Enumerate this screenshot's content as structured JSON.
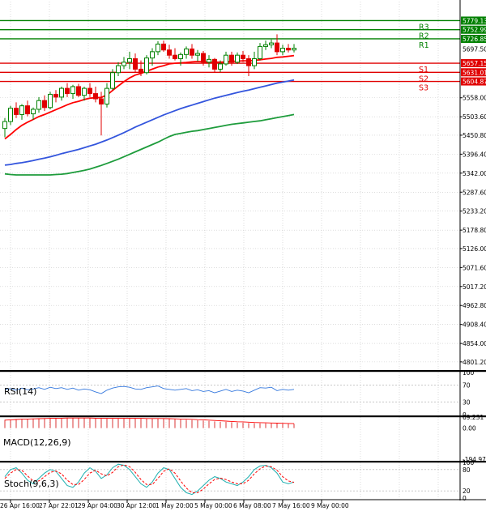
{
  "chart_data": {
    "type": "candlestick",
    "instrument_note": "",
    "price_axis": {
      "labels": [
        "5558.00",
        "5503.60",
        "5450.80",
        "5396.40",
        "5342.00",
        "5287.60",
        "5233.20",
        "5178.80",
        "5126.00",
        "5071.60",
        "5017.20",
        "4962.80",
        "4908.40",
        "4854.00",
        "4801.20"
      ],
      "ylim": [
        4780,
        5815
      ]
    },
    "time_axis": {
      "labels": [
        "26 Apr 16:00",
        "27 Apr 22:01",
        "29 Apr 04:00",
        "30 Apr 12:00",
        "1 May 20:00",
        "5 May 00:00",
        "6 May 08:00",
        "7 May 16:00",
        "9 May 00:00"
      ]
    },
    "levels": [
      {
        "name": "R3",
        "value": 5779.13,
        "label": "5779.13",
        "color": "#008000"
      },
      {
        "name": "R2",
        "value": 5752.99,
        "label": "5752.99",
        "color": "#008000"
      },
      {
        "name": "R1",
        "value": 5726.85,
        "label": "5726.85",
        "color": "#008000"
      },
      {
        "name": "S1",
        "value": 5657.15,
        "label": "5657.15",
        "color": "#e00000"
      },
      {
        "name": "S2",
        "value": 5631.01,
        "label": "5631.01",
        "color": "#e00000"
      },
      {
        "name": "S3",
        "value": 5604.87,
        "label": "5604.87",
        "color": "#e00000"
      }
    ],
    "last_price": {
      "value": 5697.5,
      "label": "5697.50"
    },
    "candles": [
      [
        5470,
        5500,
        5445,
        5490
      ],
      [
        5490,
        5535,
        5480,
        5528
      ],
      [
        5528,
        5545,
        5500,
        5510
      ],
      [
        5510,
        5540,
        5495,
        5535
      ],
      [
        5535,
        5550,
        5505,
        5512
      ],
      [
        5512,
        5530,
        5495,
        5525
      ],
      [
        5525,
        5560,
        5515,
        5550
      ],
      [
        5550,
        5565,
        5520,
        5530
      ],
      [
        5530,
        5575,
        5525,
        5568
      ],
      [
        5568,
        5580,
        5545,
        5560
      ],
      [
        5560,
        5590,
        5550,
        5585
      ],
      [
        5585,
        5600,
        5560,
        5570
      ],
      [
        5570,
        5595,
        5555,
        5590
      ],
      [
        5590,
        5598,
        5560,
        5565
      ],
      [
        5565,
        5590,
        5550,
        5585
      ],
      [
        5585,
        5600,
        5560,
        5570
      ],
      [
        5570,
        5590,
        5545,
        5555
      ],
      [
        5555,
        5575,
        5450,
        5540
      ],
      [
        5540,
        5600,
        5530,
        5585
      ],
      [
        5585,
        5640,
        5580,
        5630
      ],
      [
        5630,
        5660,
        5620,
        5650
      ],
      [
        5650,
        5675,
        5640,
        5660
      ],
      [
        5660,
        5690,
        5640,
        5670
      ],
      [
        5670,
        5685,
        5630,
        5640
      ],
      [
        5640,
        5665,
        5620,
        5630
      ],
      [
        5630,
        5680,
        5625,
        5672
      ],
      [
        5672,
        5700,
        5650,
        5690
      ],
      [
        5690,
        5720,
        5680,
        5712
      ],
      [
        5712,
        5722,
        5690,
        5695
      ],
      [
        5695,
        5710,
        5670,
        5680
      ],
      [
        5680,
        5700,
        5665,
        5670
      ],
      [
        5670,
        5688,
        5650,
        5682
      ],
      [
        5682,
        5705,
        5670,
        5698
      ],
      [
        5698,
        5712,
        5670,
        5680
      ],
      [
        5680,
        5695,
        5662,
        5685
      ],
      [
        5685,
        5692,
        5650,
        5660
      ],
      [
        5660,
        5680,
        5645,
        5668
      ],
      [
        5668,
        5672,
        5630,
        5640
      ],
      [
        5640,
        5665,
        5632,
        5655
      ],
      [
        5655,
        5690,
        5650,
        5680
      ],
      [
        5680,
        5690,
        5650,
        5660
      ],
      [
        5660,
        5688,
        5655,
        5680
      ],
      [
        5680,
        5692,
        5660,
        5670
      ],
      [
        5670,
        5680,
        5620,
        5650
      ],
      [
        5650,
        5690,
        5640,
        5670
      ],
      [
        5670,
        5715,
        5665,
        5705
      ],
      [
        5705,
        5722,
        5695,
        5710
      ],
      [
        5710,
        5725,
        5700,
        5715
      ],
      [
        5715,
        5740,
        5680,
        5690
      ],
      [
        5690,
        5710,
        5680,
        5700
      ],
      [
        5700,
        5712,
        5688,
        5695
      ],
      [
        5695,
        5712,
        5688,
        5700
      ]
    ],
    "ma_fast": [
      5440,
      5453,
      5467,
      5479,
      5488,
      5496,
      5504,
      5510,
      5517,
      5524,
      5531,
      5538,
      5544,
      5548,
      5553,
      5557,
      5558,
      5559,
      5566,
      5579,
      5592,
      5604,
      5615,
      5623,
      5628,
      5634,
      5640,
      5646,
      5650,
      5655,
      5657,
      5658,
      5659,
      5661,
      5662,
      5661,
      5660,
      5660,
      5660,
      5661,
      5662,
      5663,
      5664,
      5664,
      5665,
      5667,
      5669,
      5671,
      5674,
      5675,
      5677,
      5679
    ],
    "ma_mid": [
      5365,
      5367,
      5370,
      5372,
      5375,
      5378,
      5382,
      5385,
      5389,
      5393,
      5398,
      5402,
      5406,
      5410,
      5415,
      5420,
      5425,
      5431,
      5437,
      5444,
      5451,
      5458,
      5466,
      5474,
      5481,
      5488,
      5495,
      5502,
      5509,
      5515,
      5521,
      5527,
      5532,
      5537,
      5542,
      5547,
      5552,
      5557,
      5561,
      5565,
      5569,
      5573,
      5577,
      5580,
      5584,
      5588,
      5592,
      5596,
      5600,
      5603,
      5606,
      5609
    ],
    "ma_slow": [
      5340,
      5338,
      5337,
      5337,
      5337,
      5337,
      5337,
      5337,
      5337,
      5338,
      5339,
      5341,
      5344,
      5347,
      5350,
      5354,
      5359,
      5364,
      5370,
      5376,
      5382,
      5389,
      5396,
      5403,
      5410,
      5417,
      5424,
      5431,
      5439,
      5447,
      5453,
      5456,
      5459,
      5462,
      5464,
      5467,
      5470,
      5473,
      5476,
      5479,
      5482,
      5484,
      5486,
      5488,
      5490,
      5492,
      5495,
      5498,
      5501,
      5504,
      5507,
      5510
    ],
    "rsi": {
      "name": "RSI(14)",
      "levels": [
        "100",
        "70",
        "30",
        "0"
      ],
      "values": [
        60,
        62,
        58,
        63,
        59,
        61,
        64,
        60,
        65,
        62,
        64,
        60,
        63,
        58,
        61,
        59,
        54,
        50,
        58,
        63,
        66,
        67,
        65,
        61,
        60,
        64,
        66,
        68,
        62,
        60,
        58,
        60,
        62,
        57,
        59,
        55,
        57,
        52,
        56,
        60,
        55,
        58,
        56,
        52,
        58,
        64,
        63,
        65,
        57,
        60,
        58,
        60
      ]
    },
    "macd": {
      "name": "MACD(12,26,9)",
      "levels": [
        "69.231",
        "0.00",
        "-194.977"
      ],
      "hist": [
        52,
        54,
        56,
        58,
        59,
        60,
        61,
        62,
        63,
        63,
        64,
        64,
        64,
        64,
        64,
        63,
        62,
        61,
        60,
        60,
        61,
        62,
        63,
        62,
        61,
        60,
        60,
        61,
        60,
        58,
        56,
        54,
        52,
        51,
        49,
        47,
        45,
        42,
        40,
        39,
        37,
        35,
        34,
        32,
        31,
        30,
        30,
        30,
        29,
        28,
        27,
        27
      ],
      "signal": [
        50,
        52,
        54,
        56,
        57,
        58,
        59,
        60,
        61,
        62,
        62,
        63,
        63,
        63,
        63,
        63,
        62,
        62,
        61,
        61,
        61,
        61,
        61,
        61,
        61,
        60,
        60,
        60,
        60,
        59,
        58,
        57,
        56,
        55,
        53,
        52,
        50,
        48,
        46,
        44,
        42,
        40,
        39,
        37,
        35,
        34,
        33,
        32,
        31,
        30,
        29,
        28
      ]
    },
    "stoch": {
      "name": "Stoch(9,6,3)",
      "levels": [
        "100",
        "80",
        "20",
        "0"
      ],
      "main": [
        60,
        80,
        85,
        70,
        50,
        40,
        55,
        70,
        80,
        75,
        55,
        35,
        30,
        45,
        70,
        85,
        75,
        55,
        65,
        85,
        95,
        92,
        80,
        60,
        40,
        30,
        45,
        70,
        85,
        80,
        55,
        30,
        15,
        10,
        20,
        35,
        50,
        60,
        55,
        45,
        40,
        35,
        45,
        60,
        80,
        90,
        92,
        85,
        70,
        45,
        40,
        45
      ],
      "signal": [
        55,
        70,
        80,
        78,
        62,
        48,
        48,
        60,
        72,
        76,
        68,
        50,
        38,
        38,
        52,
        70,
        78,
        68,
        62,
        72,
        88,
        93,
        88,
        72,
        52,
        38,
        38,
        55,
        75,
        82,
        70,
        48,
        28,
        15,
        15,
        25,
        40,
        52,
        56,
        52,
        45,
        40,
        40,
        50,
        68,
        82,
        90,
        88,
        78,
        60,
        48,
        44
      ]
    },
    "colors": {
      "up": "#008000",
      "down": "#e00000",
      "ma_fast": "#ff0000",
      "ma_mid": "#3355dd",
      "ma_slow": "#1e9c3c",
      "rsi": "#3377dd",
      "macd_hist": "#d00000",
      "macd_signal": "#ff0000",
      "stoch_main": "#20b0b0",
      "stoch_signal": "#ff0000",
      "grid": "#c8c8c8"
    }
  }
}
